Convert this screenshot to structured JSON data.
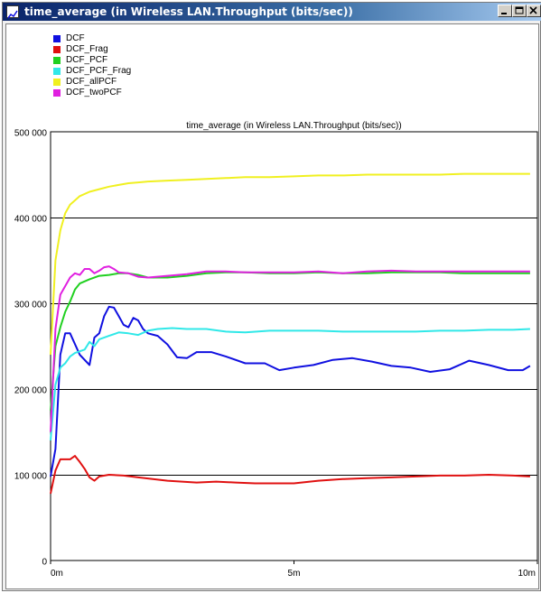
{
  "window": {
    "title": "time_average (in Wireless LAN.Throughput (bits/sec))"
  },
  "colors": {
    "DCF": "#1010e0",
    "DCF_Frag": "#e01010",
    "DCF_PCF": "#20d020",
    "DCF_PCF_Frag": "#30e8e8",
    "DCF_allPCF": "#f0f020",
    "DCF_twoPCF": "#e020e0",
    "grid": "#000000"
  },
  "chart_data": {
    "type": "line",
    "title": "time_average (in Wireless LAN.Throughput (bits/sec))",
    "xlabel": "",
    "ylabel": "",
    "x_ticks": [
      "0m",
      "5m",
      "10m"
    ],
    "x_range_minutes": [
      0,
      10
    ],
    "y_ticks": [
      "0",
      "100 000",
      "200 000",
      "300 000",
      "400 000",
      "500 000"
    ],
    "y_tick_values": [
      0,
      100000,
      200000,
      300000,
      400000,
      500000
    ],
    "ylim": [
      0,
      500000
    ],
    "grid": "horizontal",
    "legend_position": "top-left",
    "series": [
      {
        "name": "DCF",
        "colorKey": "DCF",
        "x": [
          0,
          0.1,
          0.2,
          0.3,
          0.4,
          0.6,
          0.8,
          0.9,
          1.0,
          1.1,
          1.2,
          1.3,
          1.4,
          1.5,
          1.6,
          1.7,
          1.8,
          1.9,
          2.0,
          2.2,
          2.4,
          2.6,
          2.8,
          3.0,
          3.3,
          3.6,
          4.0,
          4.4,
          4.7,
          5.0,
          5.4,
          5.8,
          6.2,
          6.6,
          7.0,
          7.4,
          7.8,
          8.2,
          8.6,
          9.0,
          9.4,
          9.7,
          9.85
        ],
        "y": [
          98000,
          130000,
          240000,
          265000,
          265000,
          240000,
          228000,
          260000,
          265000,
          285000,
          296000,
          295000,
          285000,
          275000,
          272000,
          283000,
          280000,
          270000,
          265000,
          262000,
          252000,
          237000,
          236000,
          243000,
          243000,
          238000,
          230000,
          230000,
          222000,
          225000,
          228000,
          234000,
          236000,
          232000,
          227000,
          225000,
          220000,
          223000,
          233000,
          228000,
          222000,
          222000,
          227000
        ]
      },
      {
        "name": "DCF_Frag",
        "colorKey": "DCF_Frag",
        "x": [
          0,
          0.1,
          0.2,
          0.3,
          0.4,
          0.5,
          0.6,
          0.7,
          0.8,
          0.9,
          1.0,
          1.2,
          1.5,
          1.8,
          2.1,
          2.4,
          2.7,
          3.0,
          3.4,
          3.8,
          4.2,
          4.6,
          5.0,
          5.5,
          6.0,
          6.5,
          7.0,
          7.5,
          8.0,
          8.5,
          9.0,
          9.5,
          9.85
        ],
        "y": [
          78000,
          105000,
          118000,
          118000,
          118000,
          122000,
          115000,
          107000,
          97000,
          93000,
          98000,
          100000,
          99000,
          97000,
          95000,
          93000,
          92000,
          91000,
          92000,
          91000,
          90000,
          90000,
          90000,
          93000,
          95000,
          96000,
          97000,
          98000,
          99000,
          99000,
          100000,
          99000,
          98000
        ]
      },
      {
        "name": "DCF_PCF",
        "colorKey": "DCF_PCF",
        "x": [
          0,
          0.1,
          0.2,
          0.3,
          0.4,
          0.5,
          0.6,
          0.8,
          1.0,
          1.2,
          1.4,
          1.6,
          1.8,
          2.0,
          2.4,
          2.8,
          3.2,
          3.6,
          4.0,
          4.5,
          5.0,
          5.5,
          6.0,
          6.5,
          7.0,
          7.5,
          8.0,
          8.5,
          9.0,
          9.5,
          9.85
        ],
        "y": [
          175000,
          250000,
          272000,
          290000,
          302000,
          316000,
          323000,
          328000,
          332000,
          333000,
          335000,
          335000,
          333000,
          330000,
          330000,
          332000,
          335000,
          336000,
          336000,
          335000,
          335000,
          336000,
          335000,
          335000,
          336000,
          336000,
          336000,
          335000,
          335000,
          335000,
          335000
        ]
      },
      {
        "name": "DCF_PCF_Frag",
        "colorKey": "DCF_PCF_Frag",
        "x": [
          0,
          0.1,
          0.2,
          0.3,
          0.4,
          0.5,
          0.6,
          0.7,
          0.8,
          0.9,
          1.0,
          1.2,
          1.4,
          1.6,
          1.8,
          2.0,
          2.2,
          2.5,
          2.8,
          3.2,
          3.6,
          4.0,
          4.5,
          5.0,
          5.5,
          6.0,
          6.5,
          7.0,
          7.5,
          8.0,
          8.5,
          9.0,
          9.5,
          9.85
        ],
        "y": [
          140000,
          205000,
          225000,
          230000,
          238000,
          242000,
          244000,
          246000,
          255000,
          250000,
          258000,
          262000,
          266000,
          265000,
          263000,
          268000,
          270000,
          271000,
          270000,
          270000,
          267000,
          266000,
          268000,
          268000,
          268000,
          267000,
          267000,
          267000,
          267000,
          268000,
          268000,
          269000,
          269000,
          270000
        ]
      },
      {
        "name": "DCF_allPCF",
        "colorKey": "DCF_allPCF",
        "x": [
          0,
          0.1,
          0.2,
          0.3,
          0.4,
          0.5,
          0.6,
          0.8,
          1.0,
          1.2,
          1.4,
          1.6,
          1.8,
          2.0,
          2.4,
          2.8,
          3.2,
          3.6,
          4.0,
          4.5,
          5.0,
          5.5,
          6.0,
          6.5,
          7.0,
          7.5,
          8.0,
          8.5,
          9.0,
          9.5,
          9.85
        ],
        "y": [
          240000,
          350000,
          385000,
          405000,
          415000,
          420000,
          425000,
          430000,
          433000,
          436000,
          438000,
          440000,
          441000,
          442000,
          443000,
          444000,
          445000,
          446000,
          447000,
          447000,
          448000,
          449000,
          449000,
          450000,
          450000,
          450000,
          450000,
          451000,
          451000,
          451000,
          451000
        ]
      },
      {
        "name": "DCF_twoPCF",
        "colorKey": "DCF_twoPCF",
        "x": [
          0,
          0.1,
          0.2,
          0.3,
          0.4,
          0.5,
          0.6,
          0.7,
          0.8,
          0.9,
          1.0,
          1.1,
          1.2,
          1.3,
          1.4,
          1.6,
          1.8,
          2.0,
          2.4,
          2.8,
          3.2,
          3.6,
          4.0,
          4.5,
          5.0,
          5.5,
          6.0,
          6.5,
          7.0,
          7.5,
          8.0,
          8.5,
          9.0,
          9.5,
          9.85
        ],
        "y": [
          150000,
          270000,
          310000,
          320000,
          330000,
          335000,
          333000,
          340000,
          340000,
          335000,
          338000,
          342000,
          343000,
          340000,
          336000,
          335000,
          331000,
          330000,
          332000,
          334000,
          337000,
          337000,
          336000,
          336000,
          336000,
          337000,
          335000,
          337000,
          338000,
          337000,
          337000,
          337000,
          337000,
          337000,
          337000
        ]
      }
    ]
  }
}
